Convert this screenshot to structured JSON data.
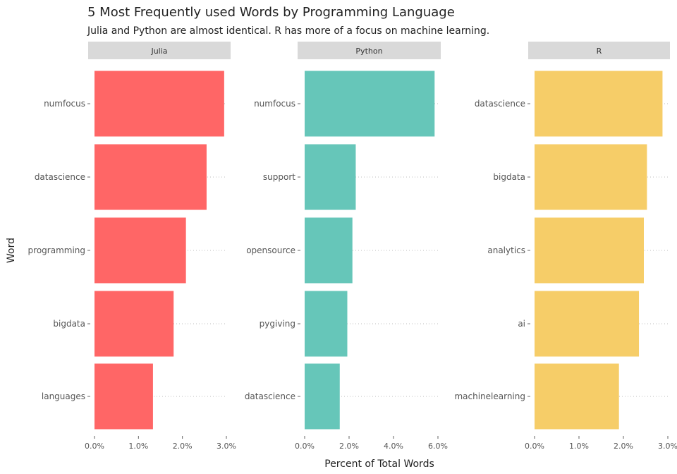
{
  "title": "5 Most Frequently used Words by Programming Language",
  "subtitle": "Julia and Python are almost identical. R has more of a focus on machine learning.",
  "chart_data": {
    "type": "bar",
    "orientation": "horizontal",
    "xlabel": "Percent of Total Words",
    "ylabel": "Word",
    "grid": "dotted horizontal lines at each word",
    "panels": [
      {
        "name": "Julia",
        "color": "#ff6666",
        "xlim": [
          0,
          3.0
        ],
        "xticks": [
          "0.0%",
          "1.0%",
          "2.0%",
          "3.0%"
        ],
        "xtick_values": [
          0,
          1,
          2,
          3
        ],
        "categories": [
          "numfocus",
          "datascience",
          "programming",
          "bigdata",
          "languages"
        ],
        "values": [
          2.95,
          2.55,
          2.08,
          1.8,
          1.33
        ]
      },
      {
        "name": "Python",
        "color": "#66c6b9",
        "xlim": [
          0,
          6.0
        ],
        "xticks": [
          "0.0%",
          "2.0%",
          "4.0%",
          "6.0%"
        ],
        "xtick_values": [
          0,
          2,
          4,
          6
        ],
        "categories": [
          "numfocus",
          "support",
          "opensource",
          "pygiving",
          "datascience"
        ],
        "values": [
          5.85,
          2.3,
          2.15,
          1.92,
          1.58
        ]
      },
      {
        "name": "R",
        "color": "#f6cd68",
        "xlim": [
          0,
          3.0
        ],
        "xticks": [
          "0.0%",
          "1.0%",
          "2.0%",
          "3.0%"
        ],
        "xtick_values": [
          0,
          1,
          2,
          3
        ],
        "categories": [
          "datascience",
          "bigdata",
          "analytics",
          "ai",
          "machinelearning"
        ],
        "values": [
          2.88,
          2.53,
          2.46,
          2.35,
          1.9
        ]
      }
    ]
  }
}
